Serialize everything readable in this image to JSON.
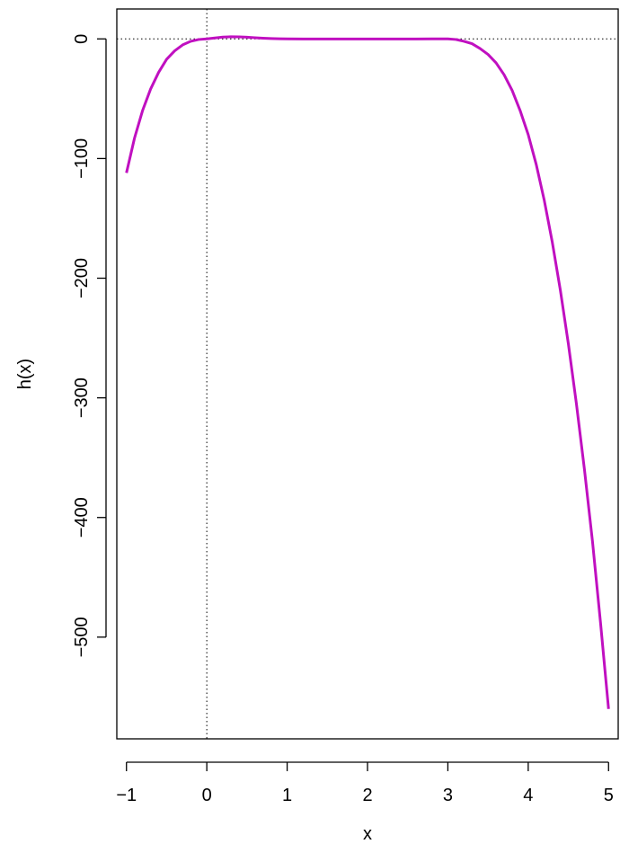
{
  "chart_data": {
    "type": "line",
    "title": "",
    "xlabel": "x",
    "ylabel": "h(x)",
    "xlim": [
      -1.12,
      5.12
    ],
    "ylim": [
      -585,
      25
    ],
    "xticks": [
      -1,
      0,
      1,
      2,
      3,
      4,
      5
    ],
    "xtick_labels": [
      "−1",
      "0",
      "1",
      "2",
      "3",
      "4",
      "5"
    ],
    "yticks": [
      0,
      -100,
      -200,
      -300,
      -400,
      -500
    ],
    "ytick_labels": [
      "0",
      "−100",
      "−200",
      "−300",
      "−400",
      "−500"
    ],
    "reference_lines": {
      "horizontal": 0,
      "vertical": 0,
      "style": "dotted"
    },
    "grid": false,
    "series": [
      {
        "color": "#c010c0",
        "x": [
          -1.0,
          -0.9,
          -0.8,
          -0.7,
          -0.6,
          -0.5,
          -0.4,
          -0.3,
          -0.2,
          -0.1,
          0.0,
          0.1,
          0.2,
          0.3,
          0.4,
          0.5,
          0.6,
          0.7,
          0.8,
          0.9,
          1.0,
          1.2,
          1.4,
          1.6,
          1.8,
          2.0,
          2.2,
          2.4,
          2.6,
          2.8,
          3.0,
          3.1,
          3.2,
          3.3,
          3.4,
          3.5,
          3.6,
          3.7,
          3.8,
          3.9,
          4.0,
          4.1,
          4.2,
          4.3,
          4.4,
          4.5,
          4.6,
          4.7,
          4.8,
          4.9,
          5.0
        ],
        "y": [
          -112,
          -83,
          -60,
          -42,
          -28,
          -17,
          -10,
          -5,
          -2,
          -0.5,
          0,
          0.8,
          1.5,
          1.8,
          1.7,
          1.4,
          1.0,
          0.6,
          0.3,
          0.1,
          0,
          -0.1,
          -0.1,
          -0.1,
          -0.1,
          -0.1,
          -0.1,
          -0.1,
          -0.1,
          0,
          0,
          -0.5,
          -2,
          -4,
          -8,
          -13,
          -20,
          -30,
          -43,
          -60,
          -80,
          -105,
          -135,
          -170,
          -210,
          -255,
          -305,
          -360,
          -420,
          -488,
          -560
        ]
      }
    ]
  }
}
